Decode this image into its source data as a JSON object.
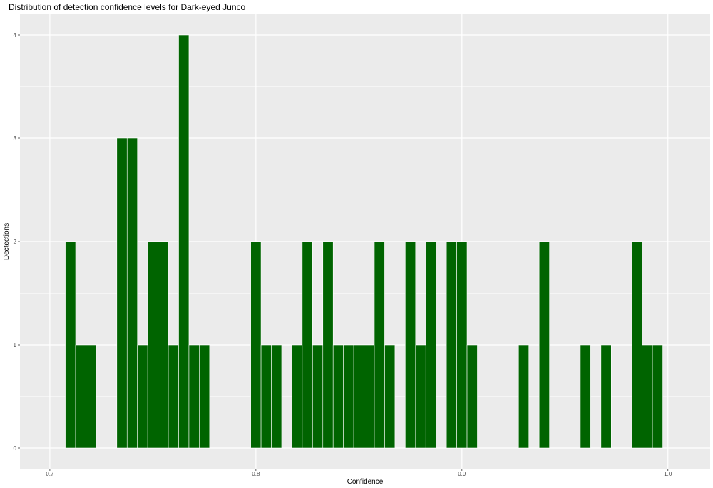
{
  "chart_data": {
    "type": "bar",
    "title": "Distribution of detection confidence levels for Dark-eyed Junco",
    "xlabel": "Confidence",
    "ylabel": "Dectections",
    "xlim": [
      0.6855,
      1.0205
    ],
    "ylim": [
      -0.2,
      4.2
    ],
    "x_ticks": [
      0.7,
      0.8,
      0.9,
      1.0
    ],
    "x_tick_labels": [
      "0.7",
      "0.8",
      "0.9",
      "1.0"
    ],
    "y_ticks": [
      0,
      1,
      2,
      3,
      4
    ],
    "y_tick_labels": [
      "0",
      "1",
      "2",
      "3",
      "4"
    ],
    "bin_width": 0.005,
    "grid": true,
    "bar_color": "#006400",
    "bar_outline": "#ffffff",
    "panel_background": "#ebebeb",
    "bins": [
      {
        "x": 0.71,
        "count": 2
      },
      {
        "x": 0.715,
        "count": 1
      },
      {
        "x": 0.72,
        "count": 1
      },
      {
        "x": 0.735,
        "count": 3
      },
      {
        "x": 0.74,
        "count": 3
      },
      {
        "x": 0.745,
        "count": 1
      },
      {
        "x": 0.75,
        "count": 2
      },
      {
        "x": 0.755,
        "count": 2
      },
      {
        "x": 0.76,
        "count": 1
      },
      {
        "x": 0.765,
        "count": 4
      },
      {
        "x": 0.77,
        "count": 1
      },
      {
        "x": 0.775,
        "count": 1
      },
      {
        "x": 0.8,
        "count": 2
      },
      {
        "x": 0.805,
        "count": 1
      },
      {
        "x": 0.81,
        "count": 1
      },
      {
        "x": 0.82,
        "count": 1
      },
      {
        "x": 0.825,
        "count": 2
      },
      {
        "x": 0.83,
        "count": 1
      },
      {
        "x": 0.835,
        "count": 2
      },
      {
        "x": 0.84,
        "count": 1
      },
      {
        "x": 0.845,
        "count": 1
      },
      {
        "x": 0.85,
        "count": 1
      },
      {
        "x": 0.855,
        "count": 1
      },
      {
        "x": 0.86,
        "count": 2
      },
      {
        "x": 0.865,
        "count": 1
      },
      {
        "x": 0.875,
        "count": 2
      },
      {
        "x": 0.88,
        "count": 1
      },
      {
        "x": 0.885,
        "count": 2
      },
      {
        "x": 0.895,
        "count": 2
      },
      {
        "x": 0.9,
        "count": 2
      },
      {
        "x": 0.905,
        "count": 1
      },
      {
        "x": 0.93,
        "count": 1
      },
      {
        "x": 0.94,
        "count": 2
      },
      {
        "x": 0.96,
        "count": 1
      },
      {
        "x": 0.97,
        "count": 1
      },
      {
        "x": 0.985,
        "count": 2
      },
      {
        "x": 0.99,
        "count": 1
      },
      {
        "x": 0.995,
        "count": 1
      }
    ]
  }
}
